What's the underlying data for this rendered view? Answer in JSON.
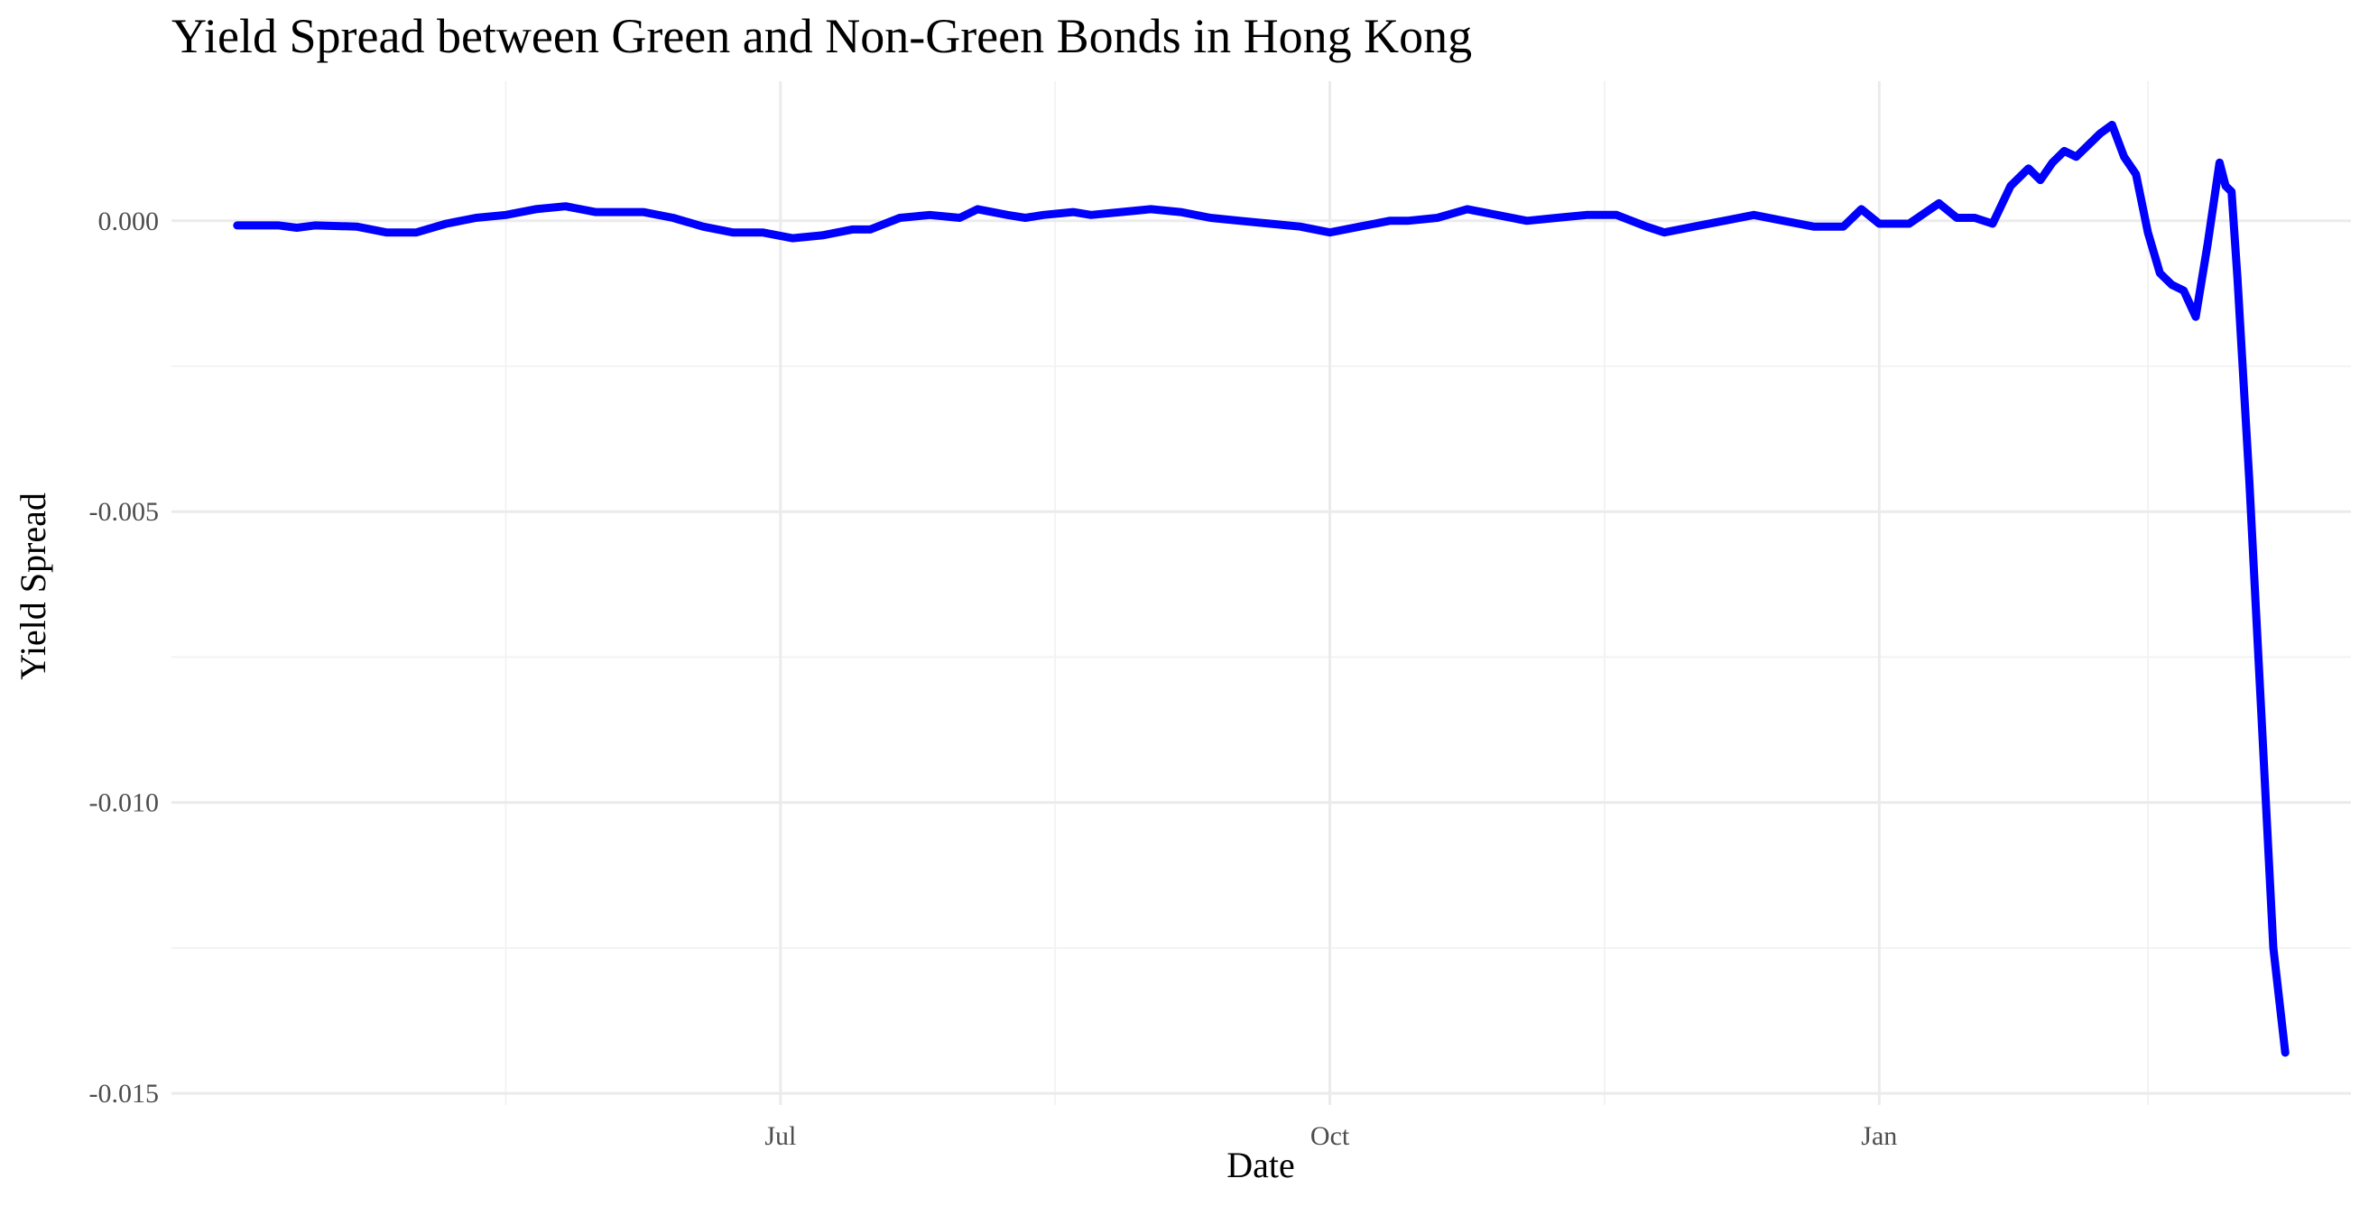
{
  "chart_data": {
    "type": "line",
    "title": "Yield Spread between Green and Non-Green Bonds in Hong Kong",
    "xlabel": "Date",
    "ylabel": "Yield Spread",
    "x_tick_labels": [
      "Jul",
      "Oct",
      "Jan"
    ],
    "x_ticks": [
      "2023-07-01",
      "2023-10-01",
      "2024-01-01"
    ],
    "x_minor_ticks": [
      "2023-05-16",
      "2023-08-16",
      "2023-11-16",
      "2024-02-15"
    ],
    "xlim": [
      "2023-03-21",
      "2024-03-20"
    ],
    "y_ticks": [
      0.0,
      -0.005,
      -0.01,
      -0.015
    ],
    "y_tick_labels": [
      "0.000",
      "-0.005",
      "-0.010",
      "-0.015"
    ],
    "ylim": [
      -0.0152,
      0.0024
    ],
    "grid": true,
    "legend": "none",
    "line_color": "#0000ff",
    "series": [
      {
        "x": [
          "2023-04-01",
          "2023-04-08",
          "2023-04-11",
          "2023-04-14",
          "2023-04-21",
          "2023-04-26",
          "2023-05-01",
          "2023-05-06",
          "2023-05-11",
          "2023-05-16",
          "2023-05-21",
          "2023-05-26",
          "2023-05-31",
          "2023-06-05",
          "2023-06-08",
          "2023-06-13",
          "2023-06-18",
          "2023-06-23",
          "2023-06-28",
          "2023-07-03",
          "2023-07-08",
          "2023-07-13",
          "2023-07-16",
          "2023-07-21",
          "2023-07-26",
          "2023-07-31",
          "2023-08-03",
          "2023-08-08",
          "2023-08-11",
          "2023-08-14",
          "2023-08-19",
          "2023-08-22",
          "2023-08-27",
          "2023-09-01",
          "2023-09-06",
          "2023-09-11",
          "2023-09-16",
          "2023-09-21",
          "2023-09-26",
          "2023-10-01",
          "2023-10-06",
          "2023-10-11",
          "2023-10-14",
          "2023-10-19",
          "2023-10-24",
          "2023-10-29",
          "2023-11-03",
          "2023-11-08",
          "2023-11-13",
          "2023-11-18",
          "2023-11-23",
          "2023-11-26",
          "2023-12-01",
          "2023-12-06",
          "2023-12-11",
          "2023-12-16",
          "2023-12-21",
          "2023-12-26",
          "2023-12-29",
          "2024-01-01",
          "2024-01-06",
          "2024-01-11",
          "2024-01-14",
          "2024-01-17",
          "2024-01-20",
          "2024-01-23",
          "2024-01-26",
          "2024-01-28",
          "2024-01-30",
          "2024-02-01",
          "2024-02-03",
          "2024-02-05",
          "2024-02-07",
          "2024-02-09",
          "2024-02-11",
          "2024-02-13",
          "2024-02-15",
          "2024-02-17",
          "2024-02-19",
          "2024-02-21",
          "2024-02-23",
          "2024-02-25",
          "2024-02-27",
          "2024-02-28",
          "2024-02-29",
          "2024-03-01",
          "2024-03-03",
          "2024-03-04",
          "2024-03-05",
          "2024-03-06",
          "2024-03-07",
          "2024-03-09"
        ],
        "values": [
          -8e-05,
          -8e-05,
          -0.00012,
          -8e-05,
          -0.0001,
          -0.0002,
          -0.0002,
          -5e-05,
          5e-05,
          0.0001,
          0.0002,
          0.00025,
          0.00015,
          0.00015,
          0.00015,
          5e-05,
          -0.0001,
          -0.0002,
          -0.0002,
          -0.0003,
          -0.00025,
          -0.00015,
          -0.00015,
          5e-05,
          0.0001,
          5e-05,
          0.0002,
          0.0001,
          5e-05,
          0.0001,
          0.00015,
          0.0001,
          0.00015,
          0.0002,
          0.00015,
          5e-05,
          0.0,
          -5e-05,
          -0.0001,
          -0.0002,
          -0.0001,
          0.0,
          0.0,
          5e-05,
          0.0002,
          0.0001,
          0.0,
          5e-05,
          0.0001,
          0.0001,
          -0.0001,
          -0.0002,
          -0.0001,
          0.0,
          0.0001,
          0.0,
          -0.0001,
          -0.0001,
          0.0002,
          -5e-05,
          -5e-05,
          0.0003,
          5e-05,
          5e-05,
          -5e-05,
          0.0006,
          0.0009,
          0.0007,
          0.001,
          0.0012,
          0.0011,
          0.0013,
          0.0015,
          0.00165,
          0.0011,
          0.0008,
          -0.0002,
          -0.0009,
          -0.0011,
          -0.0012,
          -0.00165,
          -0.0004,
          0.001,
          0.0006,
          0.0005,
          -0.001,
          -0.0045,
          -0.0065,
          -0.0085,
          -0.0105,
          -0.0125,
          -0.0143
        ]
      }
    ]
  }
}
